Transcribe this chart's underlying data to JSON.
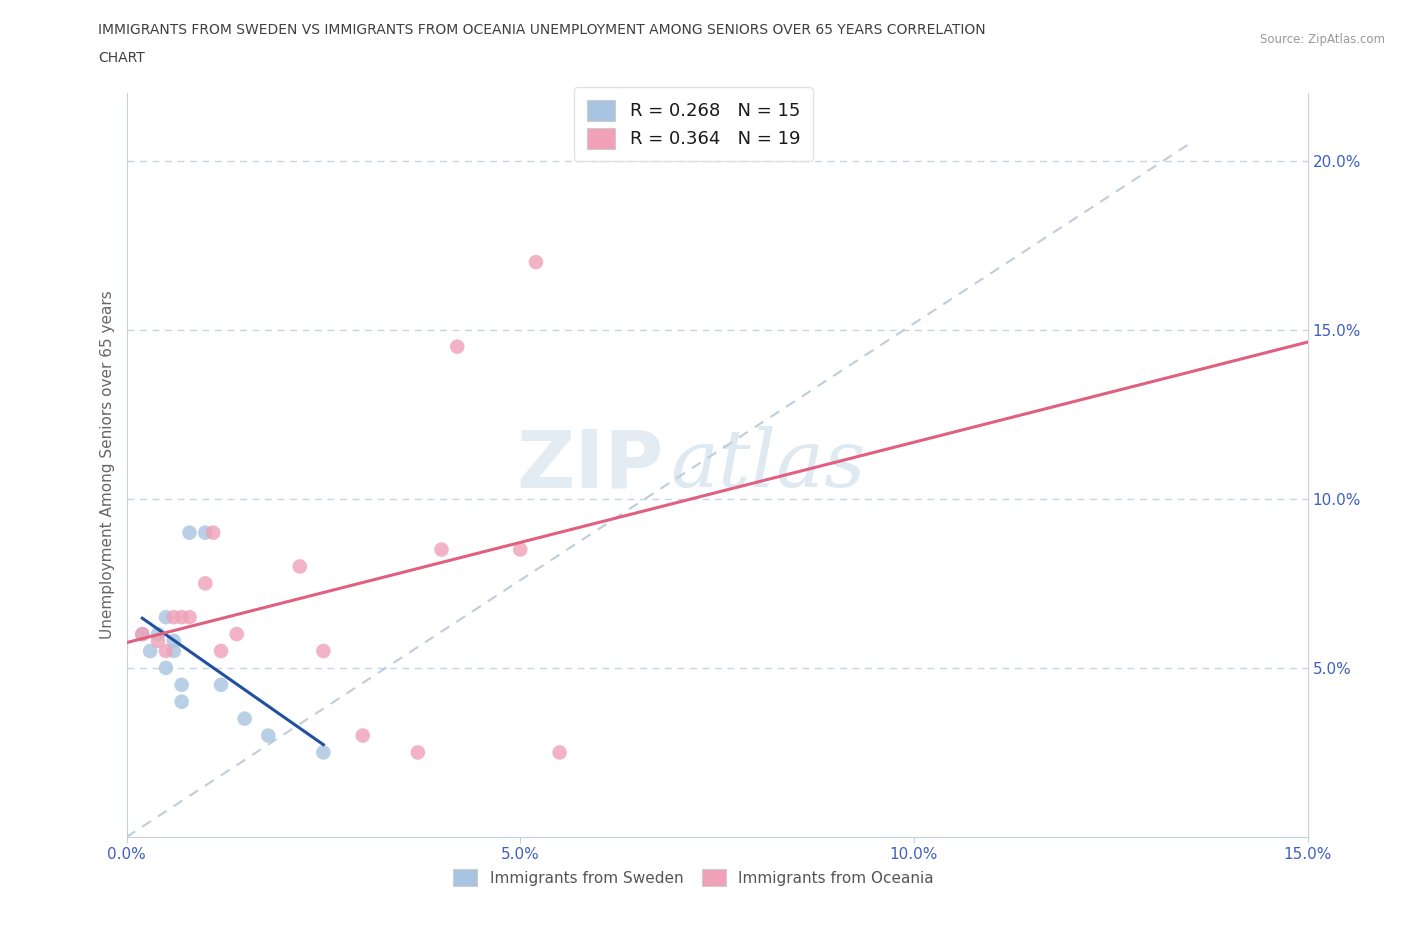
{
  "title_line1": "IMMIGRANTS FROM SWEDEN VS IMMIGRANTS FROM OCEANIA UNEMPLOYMENT AMONG SENIORS OVER 65 YEARS CORRELATION",
  "title_line2": "CHART",
  "source": "Source: ZipAtlas.com",
  "ylabel": "Unemployment Among Seniors over 65 years",
  "xlim": [
    0,
    0.15
  ],
  "ylim": [
    0,
    0.22
  ],
  "xticks": [
    0.0,
    0.05,
    0.1,
    0.15
  ],
  "xticklabels": [
    "0.0%",
    "5.0%",
    "10.0%",
    "15.0%"
  ],
  "yticks_right": [
    0.05,
    0.1,
    0.15,
    0.2
  ],
  "yticklabels_right": [
    "5.0%",
    "10.0%",
    "15.0%",
    "20.0%"
  ],
  "watermark_zip": "ZIP",
  "watermark_atlas": "atlas",
  "legend_label1": "Immigrants from Sweden",
  "legend_label2": "Immigrants from Oceania",
  "sweden_color": "#a8c4e0",
  "oceania_color": "#f0a0b8",
  "sweden_line_color": "#2050a0",
  "oceania_line_color": "#e06080",
  "diag_line_color": "#b8c8d8",
  "sweden_x": [
    0.002,
    0.003,
    0.004,
    0.005,
    0.005,
    0.006,
    0.006,
    0.007,
    0.007,
    0.008,
    0.01,
    0.012,
    0.015,
    0.018,
    0.025
  ],
  "sweden_y": [
    0.06,
    0.055,
    0.06,
    0.065,
    0.05,
    0.055,
    0.058,
    0.04,
    0.045,
    0.09,
    0.09,
    0.045,
    0.035,
    0.03,
    0.025
  ],
  "oceania_x": [
    0.002,
    0.004,
    0.005,
    0.006,
    0.007,
    0.008,
    0.01,
    0.011,
    0.012,
    0.014,
    0.022,
    0.025,
    0.03,
    0.037,
    0.04,
    0.042,
    0.05,
    0.052,
    0.055
  ],
  "oceania_y": [
    0.06,
    0.058,
    0.055,
    0.065,
    0.065,
    0.065,
    0.075,
    0.09,
    0.055,
    0.06,
    0.08,
    0.055,
    0.03,
    0.025,
    0.085,
    0.145,
    0.085,
    0.17,
    0.025
  ],
  "background_color": "#ffffff",
  "grid_color": "#c8d4e4",
  "title_color": "#404040",
  "tick_color": "#4060c0",
  "axis_color": "#c8d0dc"
}
